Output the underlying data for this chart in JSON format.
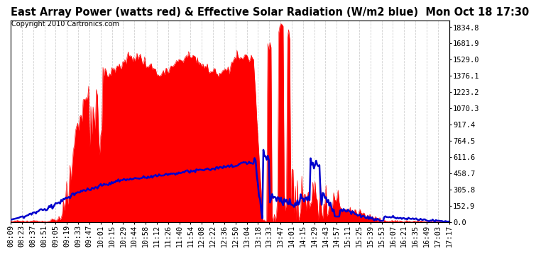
{
  "title": "East Array Power (watts red) & Effective Solar Radiation (W/m2 blue)  Mon Oct 18 17:30",
  "copyright": "Copyright 2010 Cartronics.com",
  "y_right_labels": [
    1834.8,
    1681.9,
    1529.0,
    1376.1,
    1223.2,
    1070.3,
    917.4,
    764.5,
    611.6,
    458.7,
    305.8,
    152.9,
    0.0
  ],
  "ylim": [
    0,
    1900
  ],
  "background_color": "#ffffff",
  "plot_bg_color": "#ffffff",
  "grid_color": "#cccccc",
  "x_labels": [
    "08:09",
    "08:23",
    "08:37",
    "08:51",
    "09:05",
    "09:19",
    "09:33",
    "09:47",
    "10:01",
    "10:15",
    "10:29",
    "10:44",
    "10:58",
    "11:12",
    "11:26",
    "11:40",
    "11:54",
    "12:08",
    "12:22",
    "12:36",
    "12:50",
    "13:04",
    "13:18",
    "13:33",
    "13:47",
    "14:01",
    "14:15",
    "14:29",
    "14:43",
    "14:57",
    "15:11",
    "15:25",
    "15:39",
    "15:53",
    "16:07",
    "16:21",
    "16:35",
    "16:49",
    "17:03",
    "17:17"
  ],
  "red_color": "#ff0000",
  "blue_color": "#0000cc",
  "red_fill": "#ff0000",
  "title_fontsize": 10.5,
  "copyright_fontsize": 7,
  "tick_fontsize": 7.5
}
